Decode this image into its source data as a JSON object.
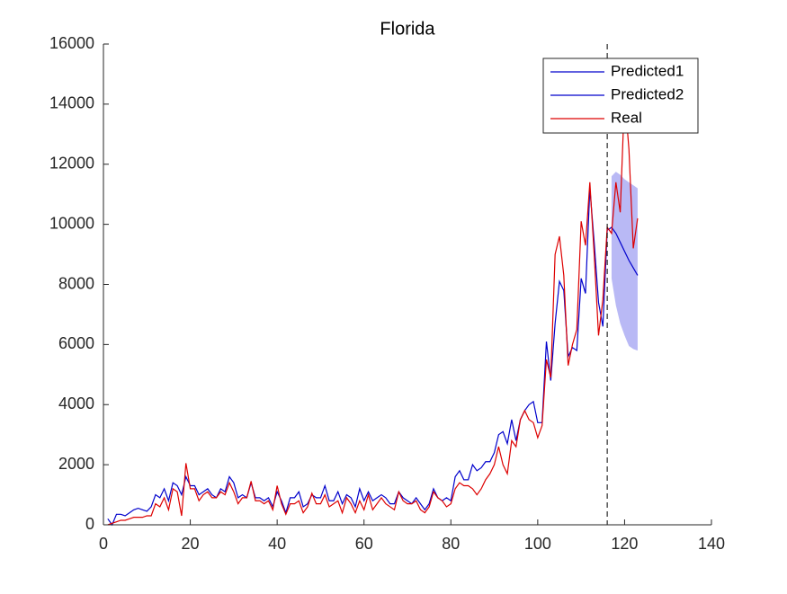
{
  "chart_data": {
    "type": "line",
    "title": "Florida",
    "xlim": [
      0,
      140
    ],
    "xticks": [
      0,
      20,
      40,
      60,
      80,
      100,
      120,
      140
    ],
    "ylim": [
      0,
      16000
    ],
    "yticks": [
      0,
      2000,
      4000,
      6000,
      8000,
      10000,
      12000,
      14000,
      16000
    ],
    "grid": false,
    "legend": "upper-right",
    "vline": 116,
    "interval": {
      "color": "#b9b9f5",
      "x": [
        117,
        118,
        119,
        120,
        121,
        122,
        123
      ],
      "upper": [
        11600,
        11750,
        11650,
        11500,
        11400,
        11300,
        11200
      ],
      "lower": [
        8200,
        7300,
        6700,
        6300,
        5950,
        5850,
        5800
      ]
    },
    "series": [
      {
        "name": "Predicted1",
        "color": "#0000cc",
        "x": [
          1,
          2,
          3,
          4,
          5,
          6,
          7,
          8,
          9,
          10,
          11,
          12,
          13,
          14,
          15,
          16,
          17,
          18,
          19,
          20,
          21,
          22,
          23,
          24,
          25,
          26,
          27,
          28,
          29,
          30,
          31,
          32,
          33,
          34,
          35,
          36,
          37,
          38,
          39,
          40,
          41,
          42,
          43,
          44,
          45,
          46,
          47,
          48,
          49,
          50,
          51,
          52,
          53,
          54,
          55,
          56,
          57,
          58,
          59,
          60,
          61,
          62,
          63,
          64,
          65,
          66,
          67,
          68,
          69,
          70,
          71,
          72,
          73,
          74,
          75,
          76,
          77,
          78,
          79,
          80,
          81,
          82,
          83,
          84,
          85,
          86,
          87,
          88,
          89,
          90,
          91,
          92,
          93,
          94,
          95,
          96,
          97,
          98,
          99,
          100,
          101,
          102,
          103,
          104,
          105,
          106,
          107,
          108,
          109,
          110,
          111,
          112,
          113,
          114,
          115,
          116
        ],
        "values": [
          200,
          0,
          350,
          350,
          300,
          400,
          500,
          550,
          500,
          450,
          600,
          1000,
          900,
          1200,
          800,
          1400,
          1300,
          1000,
          1600,
          1300,
          1300,
          1000,
          1100,
          1200,
          1000,
          900,
          1200,
          1100,
          1600,
          1400,
          900,
          1000,
          900,
          1400,
          900,
          900,
          800,
          900,
          600,
          1100,
          800,
          400,
          900,
          900,
          1100,
          600,
          700,
          1000,
          900,
          900,
          1300,
          800,
          800,
          1100,
          700,
          1000,
          900,
          600,
          1200,
          800,
          1100,
          800,
          900,
          1000,
          900,
          700,
          700,
          1100,
          900,
          800,
          700,
          900,
          700,
          500,
          700,
          1200,
          900,
          800,
          900,
          800,
          1600,
          1800,
          1500,
          1500,
          2000,
          1800,
          1900,
          2100,
          2100,
          2400,
          3000,
          3100,
          2700,
          3500,
          2800,
          3500,
          3800,
          4000,
          4100,
          3400,
          3400,
          6100,
          4800,
          6700,
          8100,
          7800,
          5600,
          5900,
          5800,
          8200,
          7700,
          11200,
          9400,
          7400,
          6600,
          9800
        ]
      },
      {
        "name": "Predicted2",
        "color": "#0000cc",
        "x": [
          116,
          117,
          118,
          119,
          120,
          121,
          122,
          123
        ],
        "values": [
          9800,
          9900,
          9700,
          9400,
          9100,
          8800,
          8550,
          8300
        ]
      },
      {
        "name": "Real",
        "color": "#dd0000",
        "x": [
          1,
          2,
          3,
          4,
          5,
          6,
          7,
          8,
          9,
          10,
          11,
          12,
          13,
          14,
          15,
          16,
          17,
          18,
          19,
          20,
          21,
          22,
          23,
          24,
          25,
          26,
          27,
          28,
          29,
          30,
          31,
          32,
          33,
          34,
          35,
          36,
          37,
          38,
          39,
          40,
          41,
          42,
          43,
          44,
          45,
          46,
          47,
          48,
          49,
          50,
          51,
          52,
          53,
          54,
          55,
          56,
          57,
          58,
          59,
          60,
          61,
          62,
          63,
          64,
          65,
          66,
          67,
          68,
          69,
          70,
          71,
          72,
          73,
          74,
          75,
          76,
          77,
          78,
          79,
          80,
          81,
          82,
          83,
          84,
          85,
          86,
          87,
          88,
          89,
          90,
          91,
          92,
          93,
          94,
          95,
          96,
          97,
          98,
          99,
          100,
          101,
          102,
          103,
          104,
          105,
          106,
          107,
          108,
          109,
          110,
          111,
          112,
          113,
          114,
          115,
          116,
          117,
          118,
          119,
          120,
          121,
          122,
          123
        ],
        "values": [
          0,
          50,
          100,
          150,
          150,
          200,
          250,
          250,
          250,
          300,
          300,
          700,
          600,
          900,
          500,
          1200,
          1100,
          300,
          2050,
          1200,
          1200,
          800,
          1000,
          1100,
          900,
          900,
          1100,
          1000,
          1400,
          1100,
          700,
          900,
          900,
          1450,
          800,
          800,
          700,
          800,
          500,
          1300,
          700,
          350,
          700,
          700,
          800,
          400,
          600,
          1050,
          700,
          700,
          1000,
          600,
          700,
          800,
          400,
          900,
          700,
          400,
          800,
          500,
          1000,
          500,
          700,
          900,
          700,
          600,
          500,
          1100,
          800,
          700,
          700,
          800,
          500,
          400,
          600,
          1100,
          900,
          800,
          600,
          700,
          1200,
          1400,
          1300,
          1300,
          1200,
          1000,
          1200,
          1500,
          1700,
          2000,
          2600,
          2000,
          1700,
          2800,
          2600,
          3500,
          3800,
          3500,
          3400,
          2900,
          3300,
          5500,
          4900,
          9000,
          9600,
          8300,
          5300,
          6000,
          6500,
          10100,
          9300,
          11400,
          9000,
          6300,
          7500,
          9900,
          9700,
          11400,
          10400,
          14300,
          12500,
          9200,
          10200
        ]
      }
    ]
  }
}
